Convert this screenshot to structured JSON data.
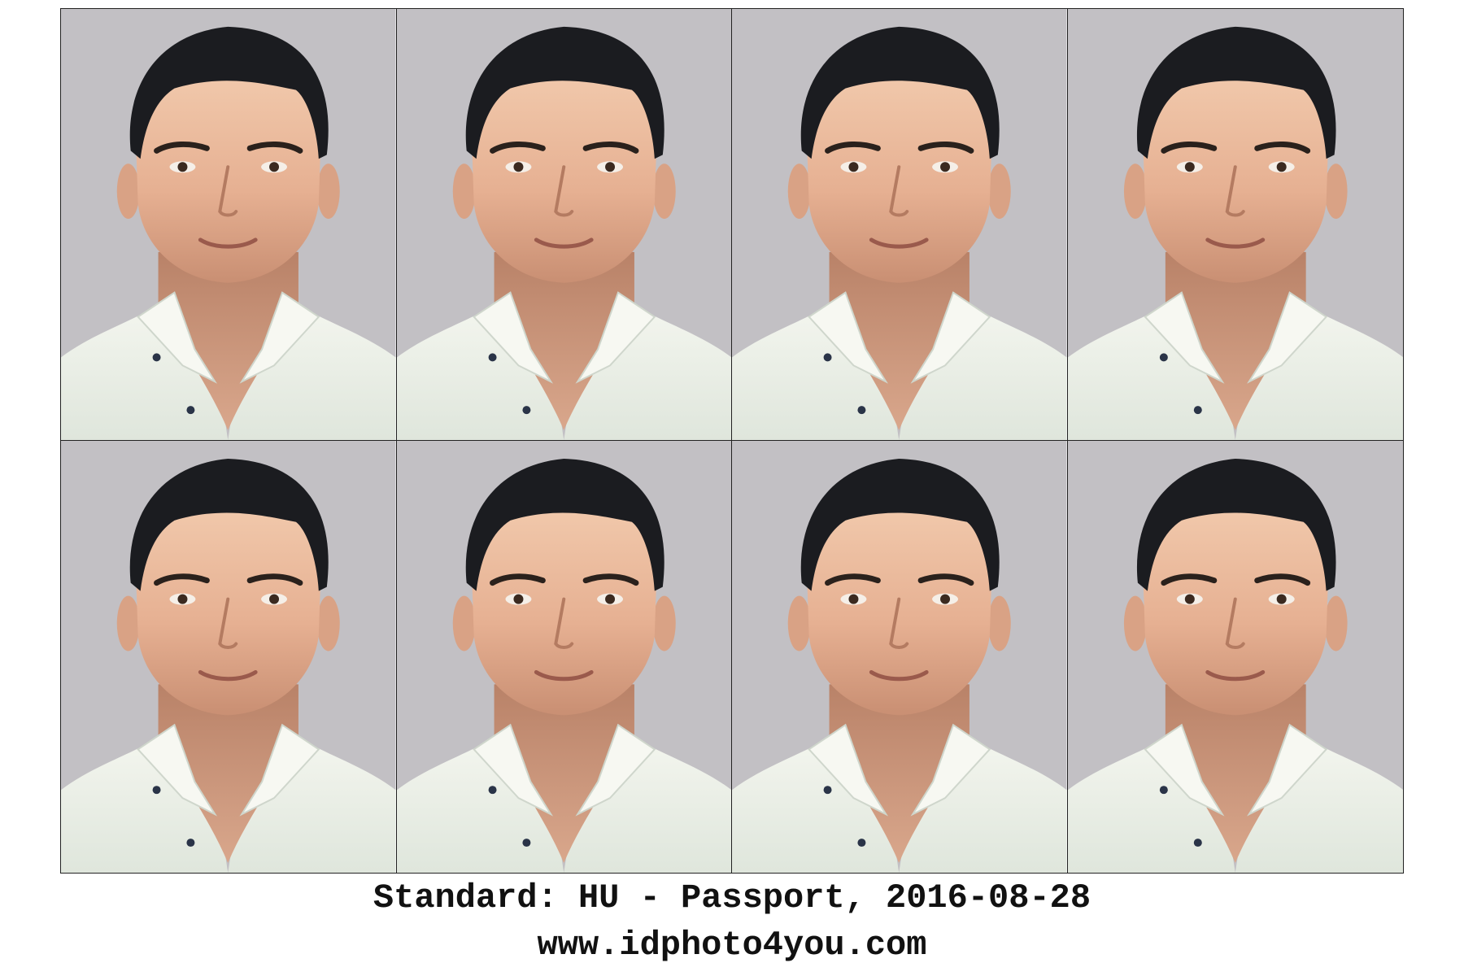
{
  "sheet": {
    "rows": 2,
    "columns": 4,
    "photo_count": 8,
    "background_color": "#c2c0c4",
    "photo_subject": "passport-photo-portrait"
  },
  "caption": {
    "standard_line": "Standard: HU - Passport, 2016-08-28",
    "website_line": "www.idphoto4you.com"
  },
  "colors": {
    "page_background": "#ffffff",
    "photo_background": "#c2c0c4",
    "grid_lines": "#222222",
    "text": "#111111"
  }
}
